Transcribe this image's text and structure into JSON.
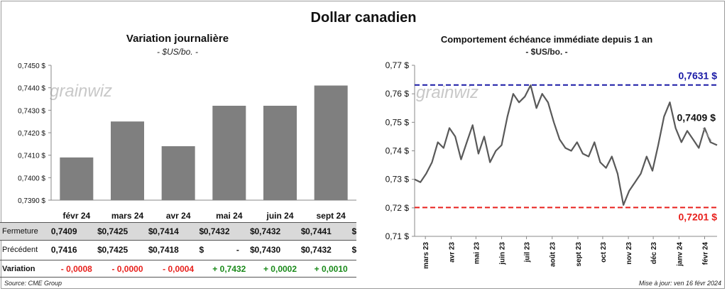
{
  "title": "Dollar canadien",
  "left_chart": {
    "title": "Variation  journalière",
    "unit": "- $US/bo. -",
    "watermark": "grainwiz"
  },
  "right_chart": {
    "title": "Comportement échéance immédiate depuis 1 an",
    "unit": "- $US/bo. -",
    "watermark": "grainwiz"
  },
  "table": {
    "rows": [
      {
        "label": "Fermeture",
        "values": [
          "0,7409",
          "0,7425",
          "0,7414",
          "0,7432",
          "0,7432",
          "0,7441"
        ]
      },
      {
        "label": "Précédent",
        "values": [
          "0,7416",
          "0,7425",
          "0,7418",
          "-",
          "0,7430",
          "0,7432"
        ]
      },
      {
        "label": "Variation",
        "values": [
          "- 0,0008",
          "- 0,0000",
          "- 0,0004",
          "+ 0,7432",
          "+ 0,0002",
          "+ 0,0010"
        ]
      }
    ],
    "currency": "$"
  },
  "footer": {
    "source": "Source: CME Group",
    "updated": "Mise à jour: ven 16 févr 2024"
  },
  "colors": {
    "bar": "#7f7f7f",
    "line": "#595959",
    "high": "#1a1aa6",
    "low": "#e8211d",
    "pos": "#1a8a1a",
    "neg": "#e8211d"
  },
  "chart_data": [
    {
      "type": "bar",
      "categories": [
        "févr 24",
        "mars 24",
        "avr 24",
        "mai 24",
        "juin 24",
        "sept 24"
      ],
      "values": [
        0.7409,
        0.7425,
        0.7414,
        0.7432,
        0.7432,
        0.7441
      ],
      "ylim": [
        0.739,
        0.745
      ],
      "yticks": [
        "0,7390 $",
        "0,7400 $",
        "0,7410 $",
        "0,7420 $",
        "0,7430 $",
        "0,7440 $",
        "0,7450 $"
      ],
      "grid": false
    },
    {
      "type": "line",
      "x": [
        "2023-02-16",
        "2023-02-23",
        "2023-03-02",
        "2023-03-09",
        "2023-03-16",
        "2023-03-23",
        "2023-03-30",
        "2023-04-06",
        "2023-04-13",
        "2023-04-20",
        "2023-04-27",
        "2023-05-04",
        "2023-05-11",
        "2023-05-18",
        "2023-05-25",
        "2023-06-01",
        "2023-06-08",
        "2023-06-15",
        "2023-06-22",
        "2023-06-29",
        "2023-07-06",
        "2023-07-13",
        "2023-07-20",
        "2023-07-27",
        "2023-08-03",
        "2023-08-10",
        "2023-08-17",
        "2023-08-24",
        "2023-08-31",
        "2023-09-07",
        "2023-09-14",
        "2023-09-21",
        "2023-09-28",
        "2023-10-05",
        "2023-10-12",
        "2023-10-19",
        "2023-10-26",
        "2023-11-02",
        "2023-11-09",
        "2023-11-16",
        "2023-11-23",
        "2023-11-30",
        "2023-12-07",
        "2023-12-14",
        "2023-12-21",
        "2023-12-28",
        "2024-01-04",
        "2024-01-11",
        "2024-01-18",
        "2024-01-25",
        "2024-02-01",
        "2024-02-08",
        "2024-02-16"
      ],
      "y": [
        0.73,
        0.729,
        0.732,
        0.736,
        0.743,
        0.741,
        0.748,
        0.745,
        0.737,
        0.743,
        0.749,
        0.739,
        0.745,
        0.736,
        0.74,
        0.742,
        0.752,
        0.76,
        0.757,
        0.759,
        0.763,
        0.755,
        0.76,
        0.757,
        0.75,
        0.744,
        0.741,
        0.74,
        0.743,
        0.739,
        0.738,
        0.743,
        0.736,
        0.734,
        0.738,
        0.732,
        0.721,
        0.726,
        0.729,
        0.732,
        0.738,
        0.733,
        0.742,
        0.752,
        0.757,
        0.748,
        0.743,
        0.747,
        0.744,
        0.741,
        0.748,
        0.743,
        0.742
      ],
      "ylim": [
        0.71,
        0.77
      ],
      "yticks": [
        "0,71 $",
        "0,72 $",
        "0,73 $",
        "0,74 $",
        "0,75 $",
        "0,76 $",
        "0,77 $"
      ],
      "xticks": [
        "mars 23",
        "avr 23",
        "mai 23",
        "juin 23",
        "juil 23",
        "août 23",
        "sept 23",
        "oct 23",
        "nov 23",
        "déc 23",
        "janv 24",
        "févr 24"
      ],
      "reference_lines": [
        {
          "value": 0.7631,
          "label": "0,7631  $"
        },
        {
          "value": 0.7201,
          "label": "0,7201  $"
        }
      ],
      "last_value_label": "0,7409 $",
      "grid": false
    }
  ]
}
